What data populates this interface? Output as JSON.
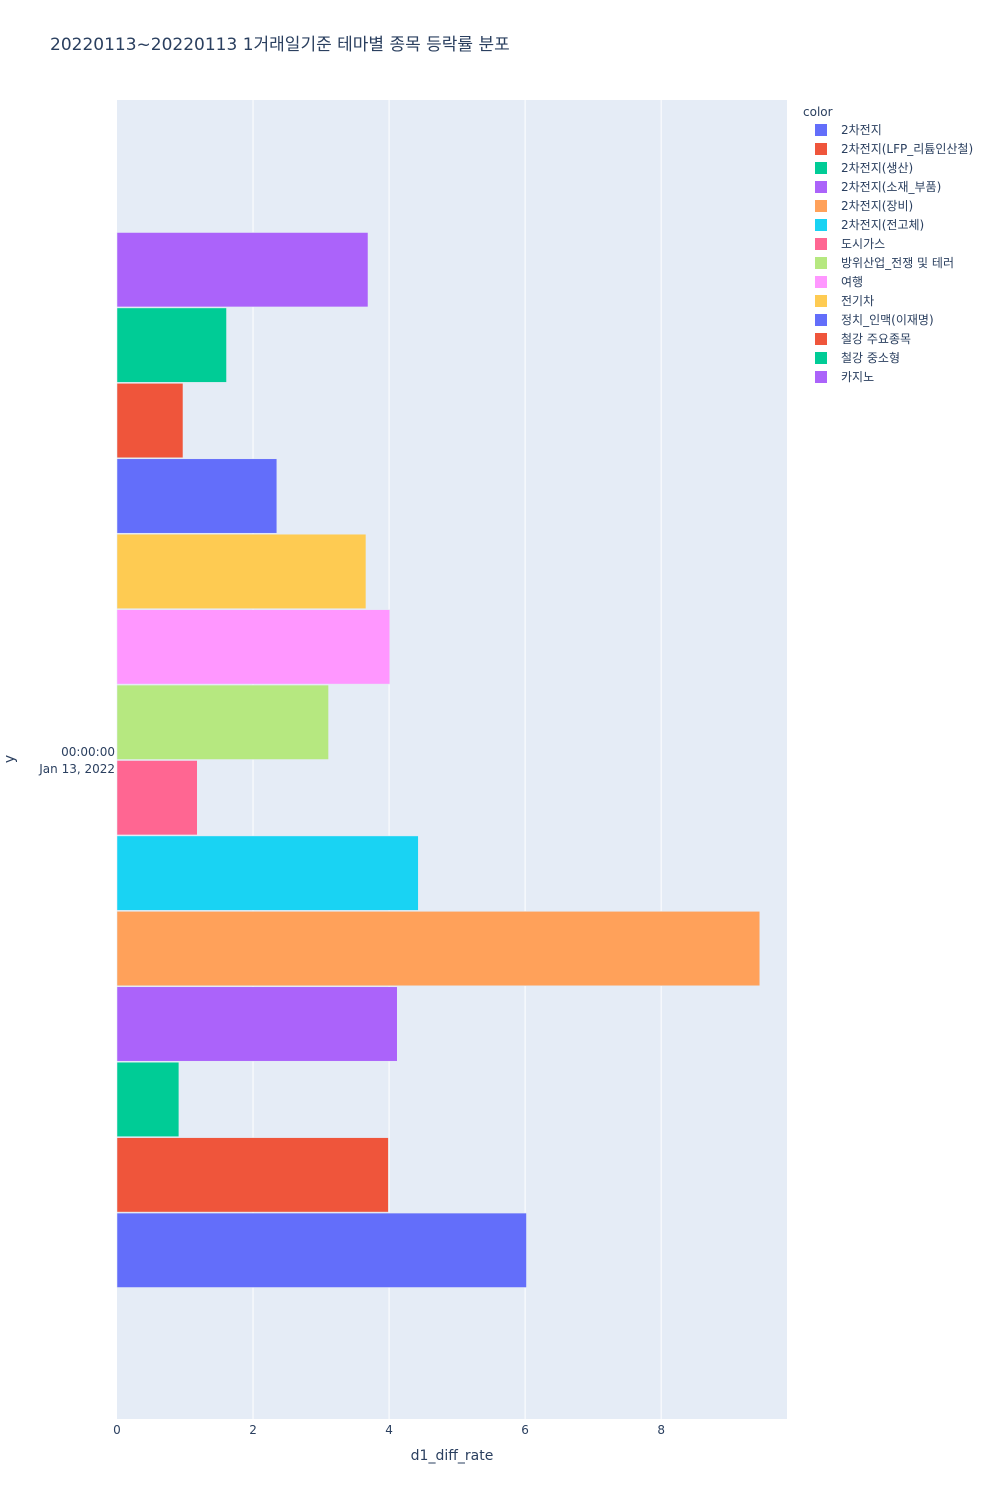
{
  "chart_data": {
    "type": "bar",
    "orientation": "horizontal",
    "barmode": "group",
    "title": "20220113~20220113 1거래일기준 테마별 종목 등락률 분포",
    "xlabel": "d1_diff_rate",
    "ylabel": "y",
    "xlim": [
      0,
      9.85
    ],
    "x_ticks": [
      0,
      2,
      4,
      6,
      8
    ],
    "x_tick_labels": [
      "0",
      "2",
      "4",
      "6",
      "8"
    ],
    "y_category": "2022-01-13 00:00:00",
    "y_tick_label_lines": [
      "00:00:00",
      "Jan 13, 2022"
    ],
    "grid": true,
    "legend_title": "color",
    "legend_position": "top-right",
    "series": [
      {
        "name": "2차전지",
        "value": 6.02,
        "color": "#636efa"
      },
      {
        "name": "2차전지(LFP_리튬인산철)",
        "value": 3.99,
        "color": "#EF553B"
      },
      {
        "name": "2차전지(생산)",
        "value": 0.91,
        "color": "#00cc96"
      },
      {
        "name": "2차전지(소재_부품)",
        "value": 4.12,
        "color": "#ab63fa"
      },
      {
        "name": "2차전지(장비)",
        "value": 9.45,
        "color": "#FFA15A"
      },
      {
        "name": "2차전지(전고체)",
        "value": 4.43,
        "color": "#19d3f3"
      },
      {
        "name": "도시가스",
        "value": 1.18,
        "color": "#FF6692"
      },
      {
        "name": "방위산업_전쟁 및 테러",
        "value": 3.11,
        "color": "#B6E880"
      },
      {
        "name": "여행",
        "value": 4.01,
        "color": "#FF97FF"
      },
      {
        "name": "전기차",
        "value": 3.66,
        "color": "#FECB52"
      },
      {
        "name": "정치_인맥(이재명)",
        "value": 2.35,
        "color": "#636efa"
      },
      {
        "name": "철강 주요종목",
        "value": 0.97,
        "color": "#EF553B"
      },
      {
        "name": "철강 중소형",
        "value": 1.61,
        "color": "#00cc96"
      },
      {
        "name": "카지노",
        "value": 3.69,
        "color": "#ab63fa"
      }
    ]
  }
}
